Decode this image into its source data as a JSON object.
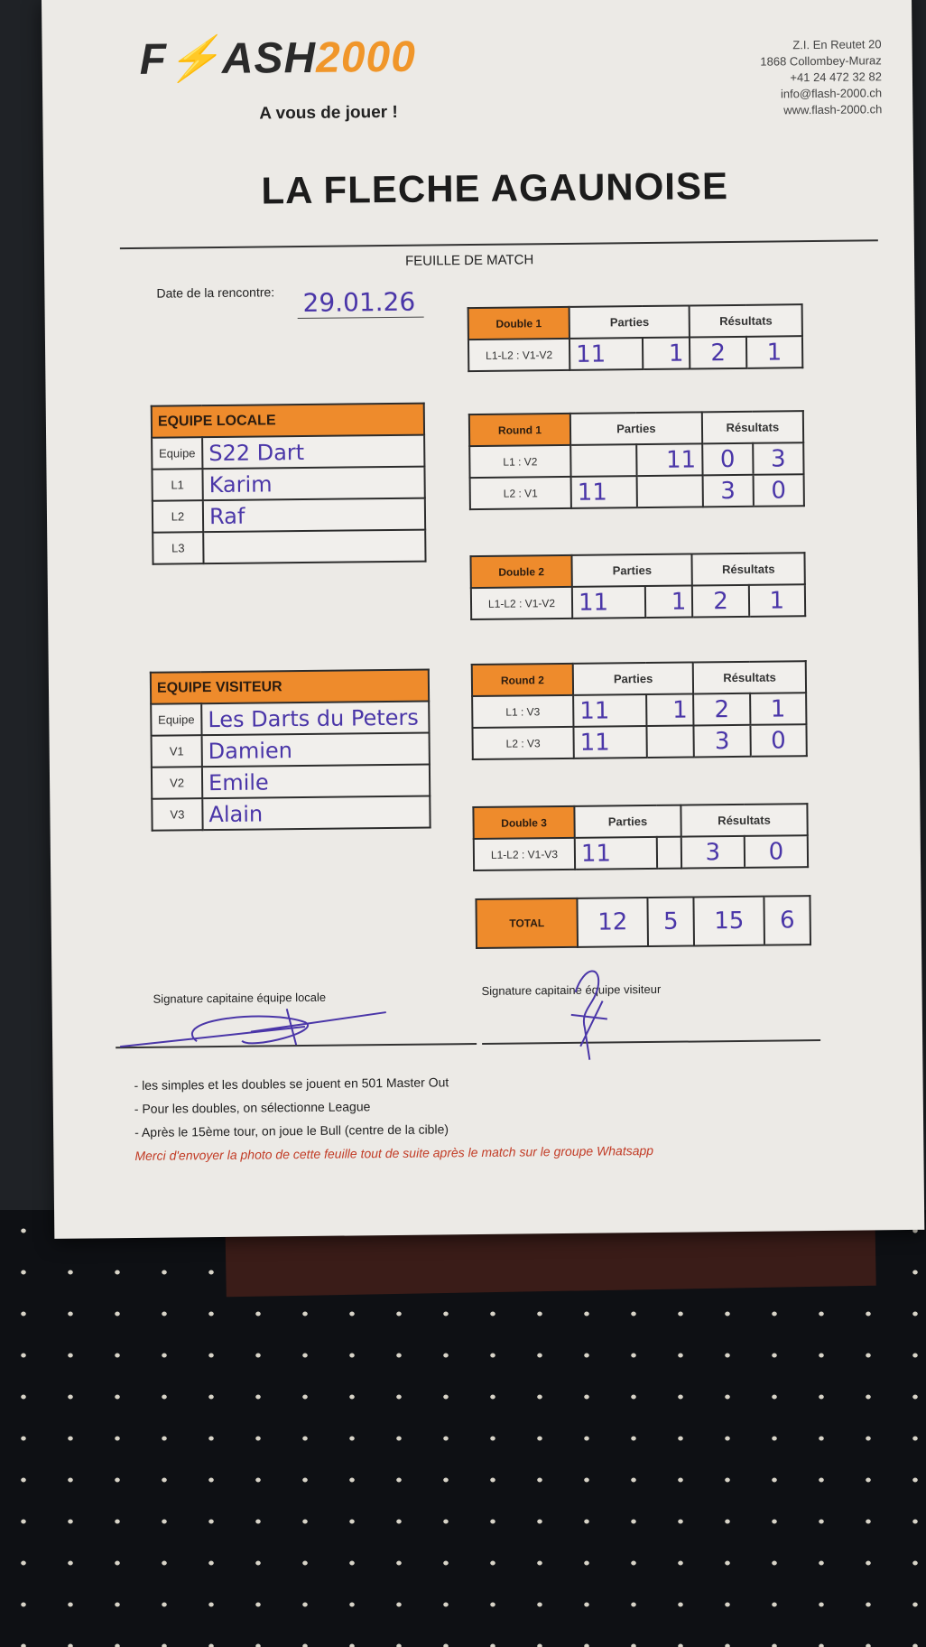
{
  "header": {
    "logo_text": "FLASH2000",
    "slogan": "A vous de jouer !",
    "address": [
      "Z.I. En Reutet 20",
      "1868 Collombey-Muraz",
      "+41 24 472 32 82",
      "info@flash-2000.ch",
      "www.flash-2000.ch"
    ],
    "title": "LA FLECHE AGAUNOISE",
    "subtitle": "FEUILLE DE MATCH",
    "date_label": "Date de la rencontre:",
    "date_value": "29.01.26"
  },
  "equipe_locale": {
    "title": "EQUIPE LOCALE",
    "rows": [
      {
        "label": "Equipe",
        "value": "S22 Dart"
      },
      {
        "label": "L1",
        "value": "Karim"
      },
      {
        "label": "L2",
        "value": "Raf"
      },
      {
        "label": "L3",
        "value": ""
      }
    ]
  },
  "equipe_visiteur": {
    "title": "EQUIPE VISITEUR",
    "rows": [
      {
        "label": "Equipe",
        "value": "Les Darts du Peters"
      },
      {
        "label": "V1",
        "value": "Damien"
      },
      {
        "label": "V2",
        "value": "Emile"
      },
      {
        "label": "V3",
        "value": "Alain"
      }
    ]
  },
  "col_parties": "Parties",
  "col_resultats": "Résultats",
  "matches": [
    {
      "title": "Double 1",
      "rows": [
        {
          "label": "L1-L2 : V1-V2",
          "p1": "11",
          "p2": "1",
          "r1": "2",
          "r2": "1"
        }
      ]
    },
    {
      "title": "Round 1",
      "rows": [
        {
          "label": "L1  :  V2",
          "p1": "",
          "p2": "11",
          "r1": "0",
          "r2": "3"
        },
        {
          "label": "L2  :  V1",
          "p1": "11",
          "p2": "",
          "r1": "3",
          "r2": "0"
        }
      ]
    },
    {
      "title": "Double 2",
      "rows": [
        {
          "label": "L1-L2 : V1-V2",
          "p1": "11",
          "p2": "1",
          "r1": "2",
          "r2": "1"
        }
      ]
    },
    {
      "title": "Round 2",
      "rows": [
        {
          "label": "L1  :  V3",
          "p1": "11",
          "p2": "1",
          "r1": "2",
          "r2": "1"
        },
        {
          "label": "L2  :  V3",
          "p1": "11",
          "p2": "",
          "r1": "3",
          "r2": "0"
        }
      ]
    },
    {
      "title": "Double 3",
      "rows": [
        {
          "label": "L1-L2 : V1-V3",
          "p1": "11",
          "p2": "",
          "r1": "3",
          "r2": "0"
        }
      ]
    }
  ],
  "total": {
    "label": "TOTAL",
    "p1": "12",
    "p2": "5",
    "r1": "15",
    "r2": "6"
  },
  "signatures": {
    "local": "Signature capitaine équipe locale",
    "visiteur": "Signature capitaine équipe visiteur"
  },
  "notes": [
    "- les simples  et les doubles se jouent en 501 Master Out",
    "- Pour les doubles, on sélectionne League",
    "- Après le 15ème tour, on joue le Bull (centre de la cible)"
  ],
  "notice": "Merci d'envoyer la photo de cette feuille tout de suite après le match sur le groupe Whatsapp",
  "colors": {
    "orange": "#ee8b2c",
    "ink": "#4a36a8",
    "notice": "#c23c26"
  }
}
